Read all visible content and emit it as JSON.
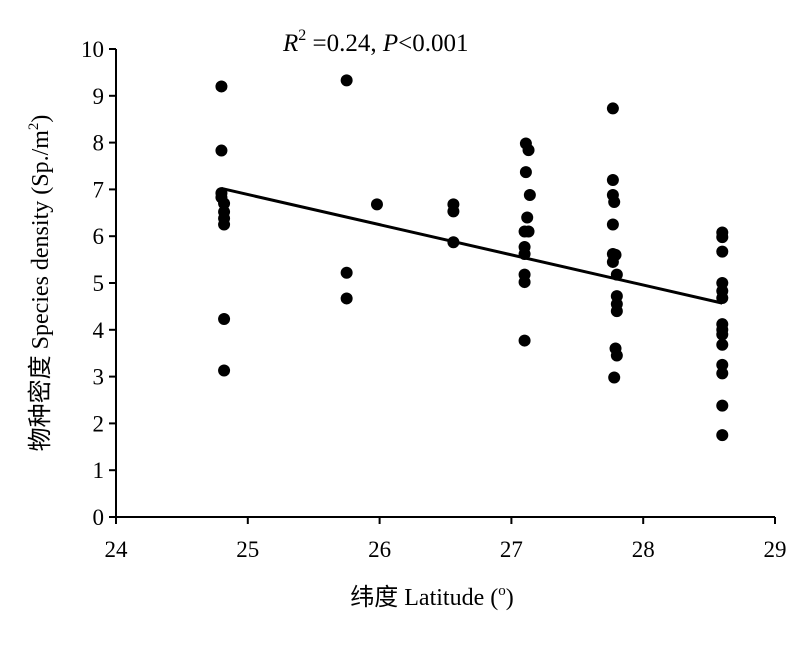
{
  "chart_data": {
    "type": "scatter",
    "annotation": {
      "r_symbol": "R",
      "r_exp": "2",
      "r_rest": " =0.24, ",
      "p_symbol": "P",
      "p_rest": "<0.001"
    },
    "xlabel": "纬度 Latitude (",
    "xlabel_sup": "o",
    "xlabel_end": ")",
    "ylabel": "物种密度  Species density (Sp./m",
    "ylabel_sup": "2",
    "ylabel_end": ")",
    "xlim": [
      24,
      29
    ],
    "ylim": [
      0,
      10
    ],
    "xticks": [
      "24",
      "25",
      "26",
      "27",
      "28",
      "29"
    ],
    "yticks": [
      "0",
      "1",
      "2",
      "3",
      "4",
      "5",
      "6",
      "7",
      "8",
      "9",
      "10"
    ],
    "grid": false,
    "legend": "none",
    "points": [
      {
        "x": 24.8,
        "y": 9.2
      },
      {
        "x": 24.8,
        "y": 7.83
      },
      {
        "x": 24.8,
        "y": 6.92
      },
      {
        "x": 24.8,
        "y": 6.83
      },
      {
        "x": 24.82,
        "y": 6.7
      },
      {
        "x": 24.82,
        "y": 6.52
      },
      {
        "x": 24.82,
        "y": 6.38
      },
      {
        "x": 24.82,
        "y": 6.25
      },
      {
        "x": 24.82,
        "y": 4.23
      },
      {
        "x": 24.82,
        "y": 3.13
      },
      {
        "x": 25.75,
        "y": 9.33
      },
      {
        "x": 25.75,
        "y": 5.22
      },
      {
        "x": 25.75,
        "y": 4.67
      },
      {
        "x": 25.98,
        "y": 6.68
      },
      {
        "x": 26.56,
        "y": 6.68
      },
      {
        "x": 26.56,
        "y": 6.53
      },
      {
        "x": 26.56,
        "y": 5.87
      },
      {
        "x": 27.11,
        "y": 7.98
      },
      {
        "x": 27.13,
        "y": 7.84
      },
      {
        "x": 27.11,
        "y": 7.37
      },
      {
        "x": 27.14,
        "y": 6.88
      },
      {
        "x": 27.12,
        "y": 6.4
      },
      {
        "x": 27.1,
        "y": 6.1
      },
      {
        "x": 27.13,
        "y": 6.1
      },
      {
        "x": 27.1,
        "y": 5.77
      },
      {
        "x": 27.1,
        "y": 5.62
      },
      {
        "x": 27.1,
        "y": 5.18
      },
      {
        "x": 27.1,
        "y": 5.02
      },
      {
        "x": 27.1,
        "y": 3.77
      },
      {
        "x": 27.77,
        "y": 8.73
      },
      {
        "x": 27.77,
        "y": 7.2
      },
      {
        "x": 27.77,
        "y": 6.88
      },
      {
        "x": 27.78,
        "y": 6.73
      },
      {
        "x": 27.77,
        "y": 6.25
      },
      {
        "x": 27.77,
        "y": 5.62
      },
      {
        "x": 27.79,
        "y": 5.6
      },
      {
        "x": 27.77,
        "y": 5.45
      },
      {
        "x": 27.8,
        "y": 5.18
      },
      {
        "x": 27.8,
        "y": 4.72
      },
      {
        "x": 27.8,
        "y": 4.55
      },
      {
        "x": 27.8,
        "y": 4.4
      },
      {
        "x": 27.79,
        "y": 3.6
      },
      {
        "x": 27.8,
        "y": 3.45
      },
      {
        "x": 27.78,
        "y": 2.98
      },
      {
        "x": 28.6,
        "y": 6.08
      },
      {
        "x": 28.6,
        "y": 5.98
      },
      {
        "x": 28.6,
        "y": 5.67
      },
      {
        "x": 28.6,
        "y": 5.0
      },
      {
        "x": 28.6,
        "y": 4.83
      },
      {
        "x": 28.6,
        "y": 4.68
      },
      {
        "x": 28.6,
        "y": 4.12
      },
      {
        "x": 28.6,
        "y": 4.0
      },
      {
        "x": 28.6,
        "y": 3.9
      },
      {
        "x": 28.6,
        "y": 3.68
      },
      {
        "x": 28.6,
        "y": 3.25
      },
      {
        "x": 28.6,
        "y": 3.07
      },
      {
        "x": 28.6,
        "y": 2.38
      },
      {
        "x": 28.6,
        "y": 1.75
      }
    ],
    "trendline": {
      "x": [
        24.8,
        28.6
      ],
      "y": [
        7.02,
        4.57
      ]
    }
  }
}
